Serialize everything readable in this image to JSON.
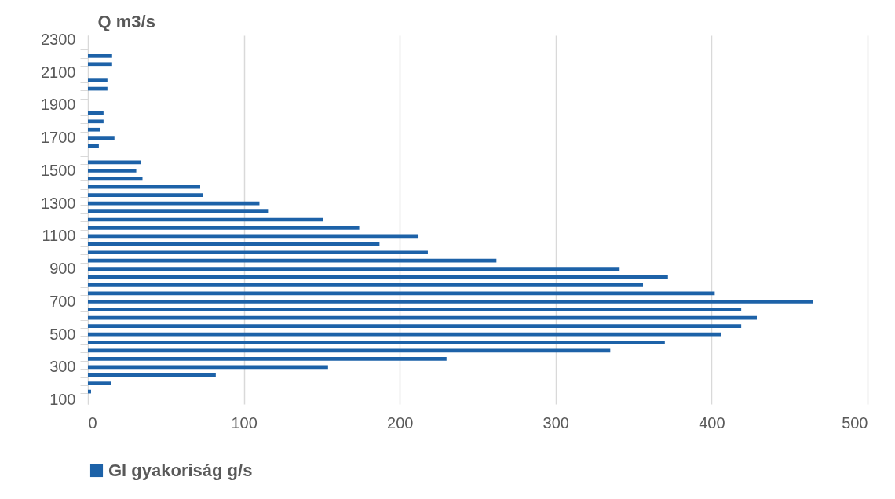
{
  "chart_data": {
    "type": "bar",
    "orientation": "horizontal",
    "ylabel": "Q m3/s",
    "categories": [
      "2300",
      null,
      null,
      null,
      "2100",
      null,
      null,
      null,
      "1900",
      null,
      null,
      null,
      "1700",
      null,
      null,
      null,
      "1500",
      null,
      null,
      null,
      "1300",
      null,
      null,
      null,
      "1100",
      null,
      null,
      null,
      "900",
      null,
      null,
      null,
      "700",
      null,
      null,
      null,
      "500",
      null,
      null,
      null,
      "300",
      null,
      null,
      null,
      "100"
    ],
    "series": [
      {
        "name": "Gl gyakoriság g/s",
        "color": "#1d62a8",
        "values": [
          null,
          null,
          15.5,
          15.5,
          null,
          12.5,
          12.5,
          null,
          null,
          10,
          10,
          8,
          17,
          7,
          null,
          34,
          31,
          35,
          72,
          74,
          110,
          116,
          151,
          174,
          212,
          187,
          218,
          262,
          341,
          372,
          356,
          402,
          465,
          419,
          429,
          419,
          406,
          370,
          335,
          230,
          154,
          82,
          15,
          2,
          null
        ]
      }
    ],
    "xlim": [
      0,
      500
    ],
    "xticks": [
      0,
      100,
      200,
      300,
      400,
      500
    ],
    "grid": "x",
    "legend": "bottom"
  }
}
